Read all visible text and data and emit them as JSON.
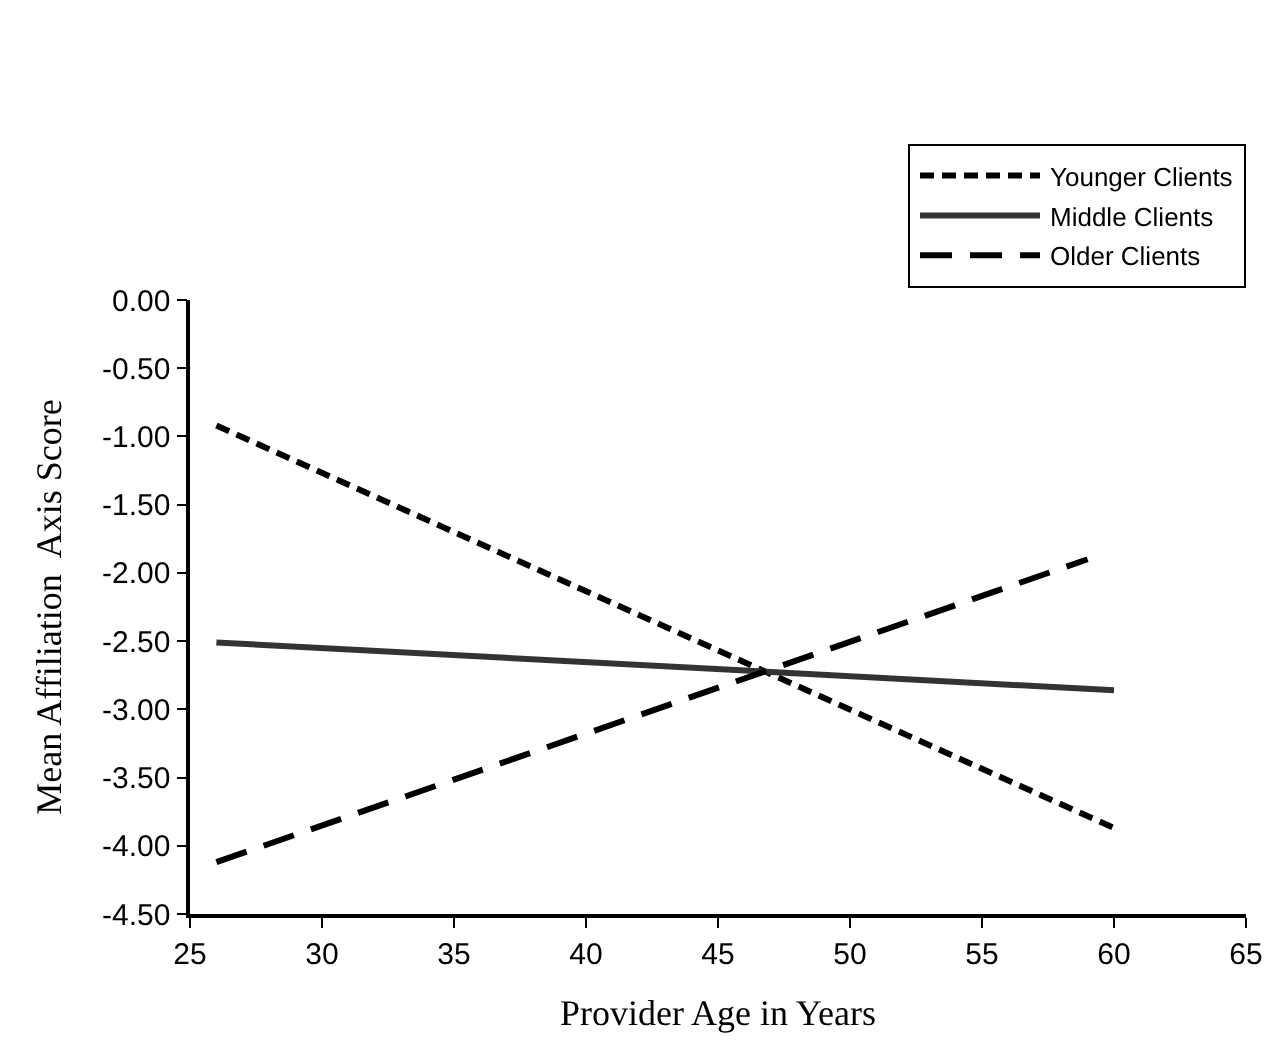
{
  "chart_data": {
    "type": "line",
    "xlabel": "Provider Age in Years",
    "ylabel": "Mean Affiliation  Axis Score",
    "xlim": [
      25,
      65
    ],
    "xticks": [
      25,
      30,
      35,
      40,
      45,
      50,
      55,
      60,
      65
    ],
    "ylim": [
      -4.5,
      0
    ],
    "yticks": [
      {
        "value": -4.5,
        "label": "-4.50"
      },
      {
        "value": -4,
        "label": "-4.00"
      },
      {
        "value": -3.5,
        "label": "-3.50"
      },
      {
        "value": -3,
        "label": "-3.00"
      },
      {
        "value": -2.5,
        "label": "-2.50"
      },
      {
        "value": -2,
        "label": "-2.00"
      },
      {
        "value": -1.5,
        "label": "-1.50"
      },
      {
        "value": -1,
        "label": "-1.00"
      },
      {
        "value": -0.5,
        "label": "-0.50"
      },
      {
        "value": 0,
        "label": "0.00"
      }
    ],
    "legend": "top right",
    "marker": "none",
    "series": [
      {
        "name": "Younger Clients",
        "color": "#000000",
        "line_style": "dotted",
        "x": [
          26,
          60
        ],
        "values": [
          -0.92,
          -3.87
        ]
      },
      {
        "name": "Middle Clients",
        "color": "#333333",
        "line_style": "solid",
        "x": [
          26,
          60
        ],
        "values": [
          -2.51,
          -2.86
        ]
      },
      {
        "name": "Older Clients",
        "color": "#000000",
        "line_style": "dashed",
        "x": [
          26,
          59
        ],
        "values": [
          -4.12,
          -1.9
        ]
      }
    ]
  }
}
